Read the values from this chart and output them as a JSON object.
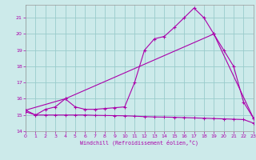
{
  "title": "",
  "xlabel": "Windchill (Refroidissement éolien,°C)",
  "bg_color": "#cceaea",
  "line_color": "#aa00aa",
  "grid_color": "#99cccc",
  "xmin": 0,
  "xmax": 23,
  "ymin": 14,
  "ymax": 21.8,
  "yticks": [
    14,
    15,
    16,
    17,
    18,
    19,
    20,
    21
  ],
  "xticks": [
    0,
    1,
    2,
    3,
    4,
    5,
    6,
    7,
    8,
    9,
    10,
    11,
    12,
    13,
    14,
    15,
    16,
    17,
    18,
    19,
    20,
    21,
    22,
    23
  ],
  "line1_x": [
    0,
    1,
    2,
    3,
    4,
    5,
    6,
    7,
    8,
    9,
    10,
    11,
    12,
    13,
    14,
    15,
    16,
    17,
    18,
    19,
    20,
    21,
    22,
    23
  ],
  "line1_y": [
    15.3,
    15.0,
    15.35,
    15.5,
    16.0,
    15.5,
    15.35,
    15.35,
    15.4,
    15.45,
    15.5,
    17.0,
    19.0,
    19.7,
    19.85,
    20.4,
    21.0,
    21.6,
    21.0,
    20.0,
    19.0,
    18.0,
    15.8,
    14.8
  ],
  "line2_x": [
    0,
    4,
    19,
    23
  ],
  "line2_y": [
    15.3,
    16.0,
    20.0,
    14.8
  ],
  "line3_x": [
    0,
    1,
    2,
    3,
    4,
    5,
    6,
    7,
    8,
    9,
    10,
    11,
    12,
    13,
    14,
    15,
    16,
    17,
    18,
    19,
    20,
    21,
    22,
    23
  ],
  "line3_y": [
    15.2,
    15.0,
    15.0,
    15.0,
    15.0,
    15.0,
    15.0,
    14.98,
    14.97,
    14.96,
    14.95,
    14.93,
    14.9,
    14.88,
    14.87,
    14.86,
    14.84,
    14.82,
    14.8,
    14.78,
    14.76,
    14.74,
    14.72,
    14.5
  ]
}
